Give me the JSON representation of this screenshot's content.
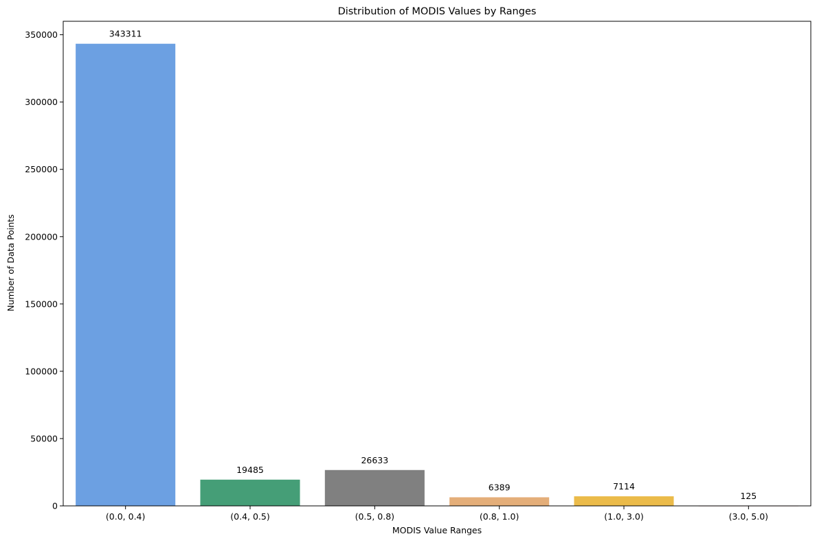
{
  "chart_data": {
    "type": "bar",
    "title": "Distribution of MODIS Values by Ranges",
    "xlabel": "MODIS Value Ranges",
    "ylabel": "Number of Data Points",
    "categories": [
      "(0.0, 0.4)",
      "(0.4, 0.5)",
      "(0.5, 0.8)",
      "(0.8, 1.0)",
      "(1.0, 3.0)",
      "(3.0, 5.0)"
    ],
    "values": [
      343311,
      19485,
      26633,
      6389,
      7114,
      125
    ],
    "data_labels": [
      "343311",
      "19485",
      "26633",
      "6389",
      "7114",
      "125"
    ],
    "colors": [
      "#6CA0E2",
      "#459E77",
      "#808080",
      "#E4AE79",
      "#EBBB4A",
      "#A32A2A"
    ],
    "ylim": [
      0,
      360000
    ],
    "yticks": [
      0,
      50000,
      100000,
      150000,
      200000,
      250000,
      300000,
      350000
    ],
    "grid": false,
    "legend": "none"
  }
}
